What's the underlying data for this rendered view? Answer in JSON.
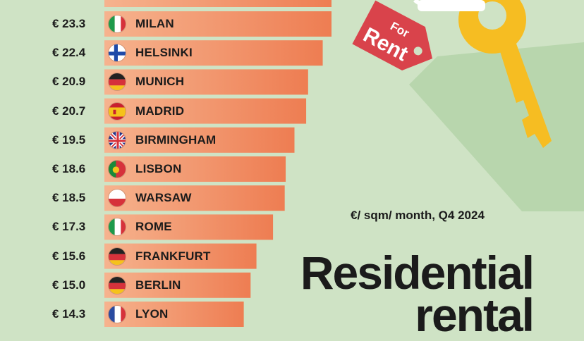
{
  "chart_data": {
    "type": "bar",
    "orientation": "horizontal",
    "title": "Residential rental",
    "subtitle": "€/ sqm/ month, Q4 2024",
    "categories": [
      "MILAN",
      "HELSINKI",
      "MUNICH",
      "MADRID",
      "BIRMINGHAM",
      "LISBON",
      "WARSAW",
      "ROME",
      "FRANKFURT",
      "BERLIN",
      "LYON"
    ],
    "values": [
      23.3,
      22.4,
      20.9,
      20.7,
      19.5,
      18.6,
      18.5,
      17.3,
      15.6,
      15.0,
      14.3
    ],
    "value_labels": [
      "€ 23.3",
      "€ 22.4",
      "€ 20.9",
      "€ 20.7",
      "€ 19.5",
      "€ 18.6",
      "€ 18.5",
      "€ 17.3",
      "€ 15.6",
      "€ 15.0",
      "€ 14.3"
    ],
    "flags": [
      "italy",
      "finland",
      "germany",
      "spain",
      "uk",
      "portugal",
      "poland",
      "italy",
      "germany",
      "germany",
      "france"
    ],
    "xlim": [
      0,
      23.3
    ],
    "grid": false,
    "colors": {
      "bar_left": "#f6b38e",
      "bar_right": "#ee7d52",
      "background": "#cfe3c5"
    }
  },
  "illustration": {
    "sign_text_line1": "For",
    "sign_text_line2": "Rent",
    "icons": [
      "for-rent-tag-icon",
      "key-icon"
    ],
    "colors": {
      "tag": "#d9434b",
      "key": "#f6bd22",
      "shadow": "#b8d6ad"
    }
  }
}
